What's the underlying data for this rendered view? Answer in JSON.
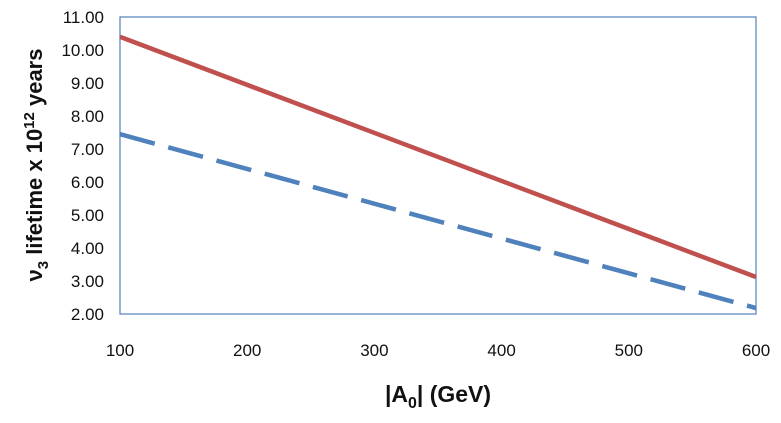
{
  "chart_data": {
    "type": "line",
    "xlabel_parts": {
      "prefix": "|A",
      "subscript": "0",
      "suffix": "| (GeV)"
    },
    "ylabel_parts": {
      "nu": "ν",
      "nu_sub": "3",
      "middle": " lifetime x 10",
      "sup": "12",
      "end": " years"
    },
    "xlim": [
      100,
      600
    ],
    "ylim": [
      2.0,
      11.0
    ],
    "x_ticks": [
      "100",
      "200",
      "300",
      "400",
      "500",
      "600"
    ],
    "y_ticks": [
      "2.00",
      "3.00",
      "4.00",
      "5.00",
      "6.00",
      "7.00",
      "8.00",
      "9.00",
      "10.00",
      "11.00"
    ],
    "grid": false,
    "legend": false,
    "series": [
      {
        "style": "solid",
        "color": "#c0504d",
        "x": [
          100,
          600
        ],
        "y": [
          10.4,
          3.12
        ]
      },
      {
        "style": "dashed",
        "color": "#4f81bd",
        "x": [
          100,
          600
        ],
        "y": [
          7.45,
          2.18
        ]
      }
    ],
    "frame_color": "#4f81bd"
  }
}
